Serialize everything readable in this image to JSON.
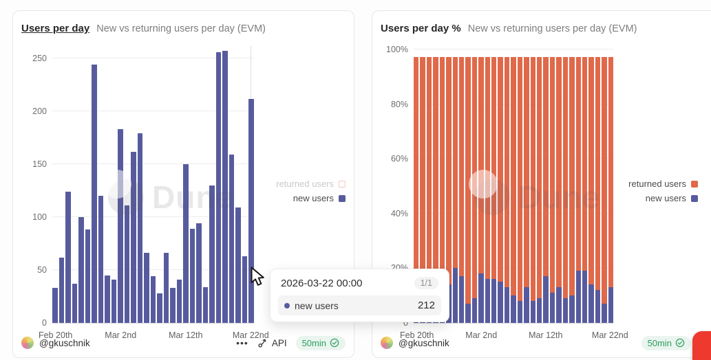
{
  "left_panel": {
    "title": "Users per day",
    "subtitle": "New vs returning users per day (EVM)",
    "legend": {
      "returned": "returned users",
      "new": "new users"
    },
    "footer": {
      "username": "@gkuschnik",
      "menu_dots": "•••",
      "api_label": "API",
      "refresh_label": "50min"
    }
  },
  "right_panel": {
    "title": "Users per day %",
    "subtitle": "New vs returning users per day (EVM)",
    "legend": {
      "returned": "returned users",
      "new": "new users"
    },
    "footer": {
      "username": "@gkuschnik",
      "refresh_label": "50min"
    }
  },
  "tooltip": {
    "date": "2026-03-22 00:00",
    "pager": "1/1",
    "series_label": "new users",
    "value": "212"
  },
  "watermark_text": "Dune",
  "colors": {
    "new_users": "#575b9e",
    "returned_users": "#e0694a",
    "refresh_green": "#2f9e5f",
    "record_red": "#ee392e"
  },
  "chart_data": [
    {
      "type": "bar",
      "title": "Users per day",
      "subtitle": "New vs returning users per day (EVM)",
      "x_tick_labels": [
        "Feb 20th",
        "Mar 2nd",
        "Mar 12th",
        "Mar 22nd"
      ],
      "x_tick_indices": [
        0,
        10,
        20,
        30
      ],
      "y_tick_labels": [
        "0",
        "50",
        "100",
        "150",
        "200",
        "250"
      ],
      "y_tick_values": [
        0,
        50,
        100,
        150,
        200,
        250
      ],
      "ylim": [
        0,
        257
      ],
      "grid": true,
      "legend_position": "right",
      "hover_index": 30,
      "series": [
        {
          "name": "returned users",
          "color": "#e0694a",
          "visible": false,
          "values": []
        },
        {
          "name": "new users",
          "color": "#575b9e",
          "visible": true,
          "values": [
            33,
            62,
            124,
            37,
            100,
            88,
            244,
            120,
            45,
            41,
            183,
            111,
            162,
            179,
            66,
            44,
            28,
            66,
            33,
            41,
            150,
            89,
            94,
            34,
            130,
            256,
            257,
            159,
            109,
            63,
            212
          ]
        }
      ]
    },
    {
      "type": "bar",
      "subtype": "stacked-100pct",
      "title": "Users per day %",
      "subtitle": "New vs returning users per day (EVM)",
      "x_tick_labels": [
        "Feb 20th",
        "Mar 2nd",
        "Mar 12th",
        "Mar 22nd"
      ],
      "x_tick_indices": [
        0,
        10,
        20,
        30
      ],
      "y_tick_labels": [
        "0",
        "20%",
        "40%",
        "60%",
        "80%",
        "100%"
      ],
      "y_tick_values": [
        0,
        20,
        40,
        60,
        80,
        100
      ],
      "ylim": [
        0,
        100
      ],
      "grid": true,
      "legend_position": "right",
      "series": [
        {
          "name": "new users",
          "color": "#575b9e",
          "stack_order": "bottom",
          "values_pct": [
            6,
            2,
            15,
            5,
            10,
            14,
            20,
            17,
            7,
            9,
            18,
            16,
            16,
            15,
            13,
            10,
            8,
            13,
            8,
            9,
            17,
            11,
            13,
            9,
            10,
            19,
            19,
            14,
            12,
            7,
            13
          ]
        },
        {
          "name": "returned users",
          "color": "#e0694a",
          "stack_order": "top",
          "values_pct": [
            94,
            98,
            85,
            95,
            90,
            86,
            80,
            83,
            93,
            91,
            82,
            84,
            84,
            85,
            87,
            90,
            92,
            87,
            92,
            91,
            83,
            89,
            87,
            91,
            90,
            81,
            81,
            86,
            88,
            93,
            87
          ]
        }
      ]
    }
  ]
}
